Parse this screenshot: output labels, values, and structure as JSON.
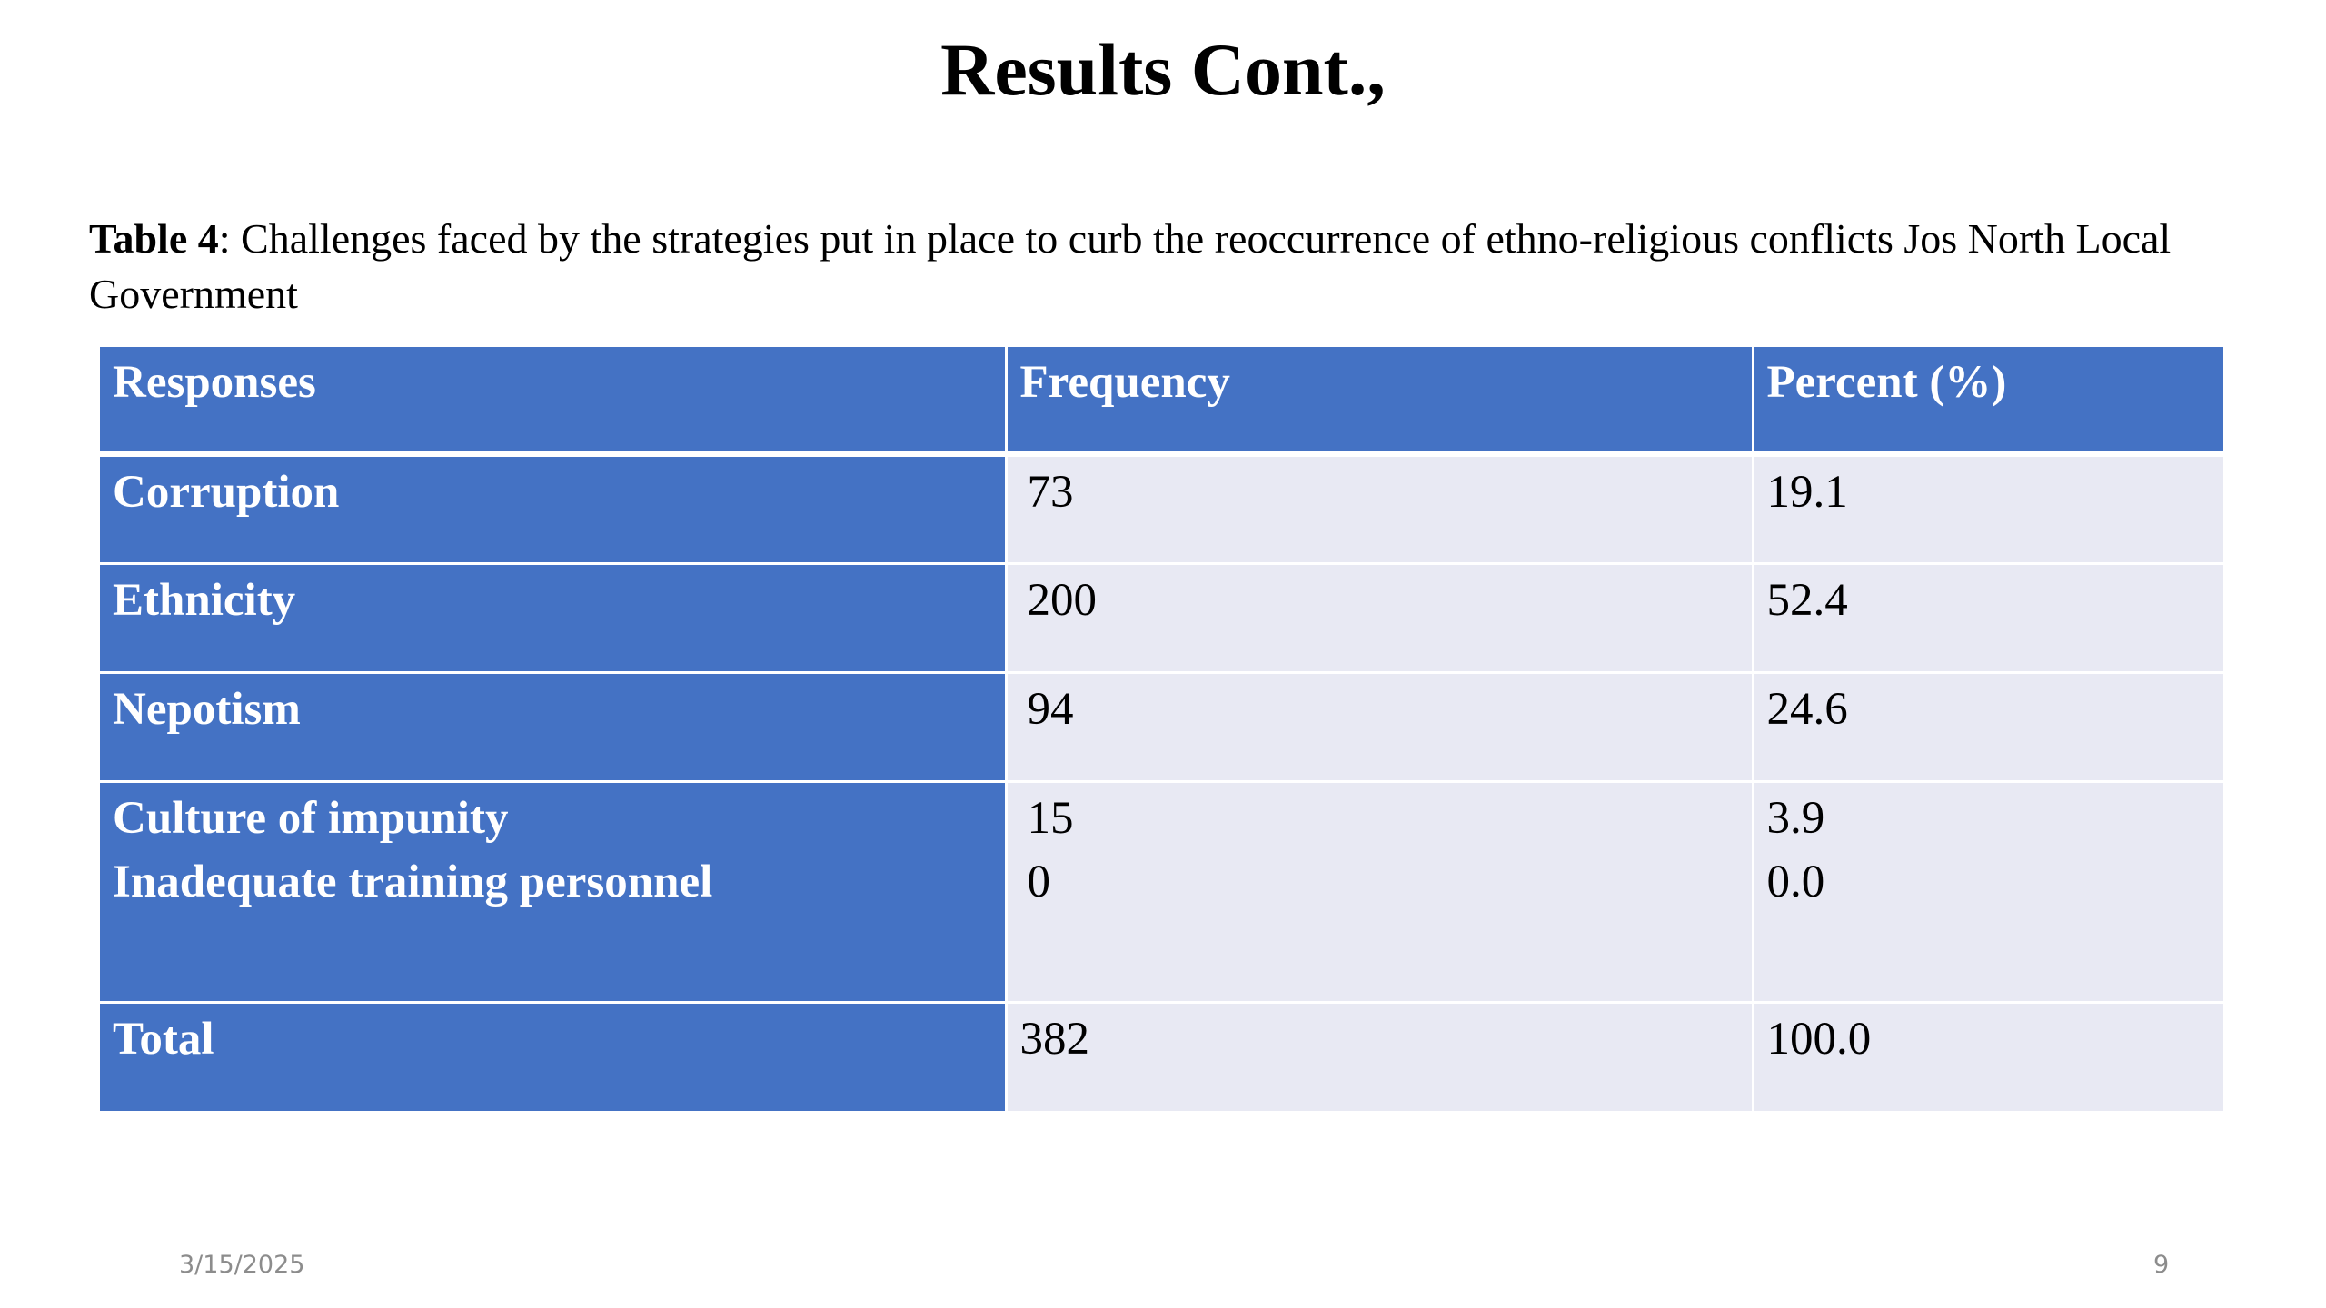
{
  "slide": {
    "title": "Results Cont.,",
    "footer_date": "3/15/2025",
    "page_number": "9"
  },
  "caption": {
    "label": "Table 4",
    "text": ": Challenges faced by the strategies put in place to curb the reoccurrence of ethno-religious conflicts Jos North Local Government"
  },
  "table": {
    "headers": [
      "Responses",
      "Frequency",
      "Percent (%)"
    ],
    "rows": [
      {
        "response": "Corruption",
        "frequency": "73",
        "percent": "19.1"
      },
      {
        "response": "Ethnicity",
        "frequency": "200",
        "percent": "52.4"
      },
      {
        "response": "Nepotism",
        "frequency": "94",
        "percent": "24.6"
      },
      {
        "response": "Culture of impunity",
        "frequency": "15",
        "percent": "3.9"
      },
      {
        "response": "Inadequate training personnel",
        "frequency": "0",
        "percent": "0.0"
      }
    ],
    "total": {
      "label": "Total",
      "frequency": "382",
      "percent": "100.0"
    }
  },
  "colors": {
    "header_fill": "#4472c4",
    "body_fill": "#e8e9f3",
    "footer_text": "#8c8c8c"
  }
}
